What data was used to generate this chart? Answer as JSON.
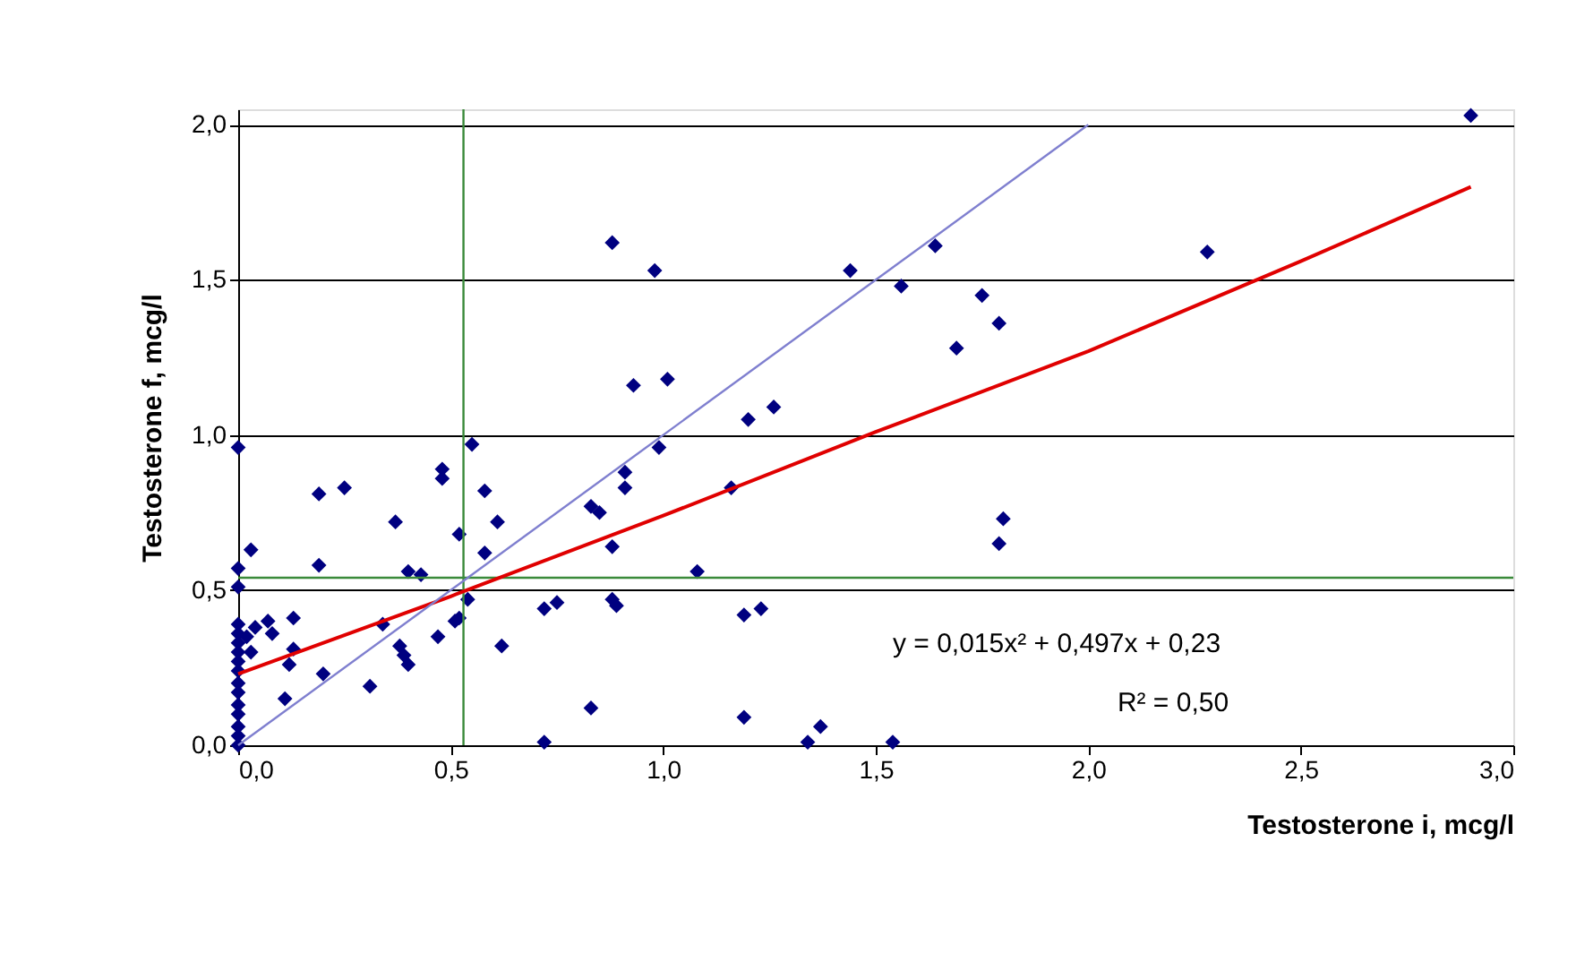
{
  "chart_data": {
    "type": "scatter",
    "xlabel": "Testosterone i, mcg/l",
    "ylabel": "Testosterone f, mcg/l",
    "xlim": [
      0,
      3.0
    ],
    "ylim": [
      0,
      2.05
    ],
    "xticks": [
      {
        "value": 0,
        "label": "0,0"
      },
      {
        "value": 0.5,
        "label": "0,5"
      },
      {
        "value": 1,
        "label": "1,0"
      },
      {
        "value": 1.5,
        "label": "1,5"
      },
      {
        "value": 2,
        "label": "2,0"
      },
      {
        "value": 2.5,
        "label": "2,5"
      },
      {
        "value": 3,
        "label": "3,0"
      }
    ],
    "yticks": [
      {
        "value": 0,
        "label": "0,0"
      },
      {
        "value": 0.5,
        "label": "0,5"
      },
      {
        "value": 1,
        "label": "1,0"
      },
      {
        "value": 1.5,
        "label": "1,5"
      },
      {
        "value": 2,
        "label": "2,0"
      }
    ],
    "grid": "y",
    "series": [
      {
        "marker": "diamond",
        "color": "#000080",
        "x": [
          0,
          0.03,
          0,
          0,
          0.19,
          0.25,
          0.19,
          0.37,
          0.4,
          0.43,
          0.48,
          0.48,
          0.52,
          0.58,
          0.61,
          0.58,
          0.55,
          0.07,
          0.13,
          0.08,
          0.13,
          0.12,
          0.2,
          0.11,
          0.31,
          0.34,
          0.38,
          0.39,
          0.4,
          0.47,
          0.51,
          0.52,
          0.54,
          0.62,
          0.72,
          0.75,
          0.72,
          0,
          0,
          0,
          0,
          0,
          0,
          0,
          0,
          0,
          0,
          0,
          0,
          0,
          0.02,
          0.03,
          0.04,
          1.2,
          1.26,
          0.99,
          0.91,
          0.91,
          0.83,
          0.85,
          0.88,
          1.16,
          1.08,
          0.88,
          0.89,
          1.19,
          1.23,
          0.83,
          1.19,
          1.37,
          1.34,
          1.54,
          0.88,
          0.98,
          1.44,
          1.56,
          0.93,
          1.01,
          1.64,
          1.75,
          1.79,
          1.69,
          2.28,
          1.8,
          1.79,
          2.9
        ],
        "values": [
          0.96,
          0.63,
          0.57,
          0.51,
          0.81,
          0.83,
          0.58,
          0.72,
          0.56,
          0.55,
          0.89,
          0.86,
          0.68,
          0.82,
          0.72,
          0.62,
          0.97,
          0.4,
          0.41,
          0.36,
          0.31,
          0.26,
          0.23,
          0.15,
          0.19,
          0.39,
          0.32,
          0.29,
          0.26,
          0.35,
          0.4,
          0.41,
          0.47,
          0.32,
          0.44,
          0.46,
          0.01,
          0,
          0.03,
          0.06,
          0.1,
          0.13,
          0.17,
          0.2,
          0.24,
          0.27,
          0.3,
          0.33,
          0.36,
          0.39,
          0.35,
          0.3,
          0.38,
          1.05,
          1.09,
          0.96,
          0.88,
          0.83,
          0.77,
          0.75,
          0.64,
          0.83,
          0.56,
          0.47,
          0.45,
          0.42,
          0.44,
          0.12,
          0.09,
          0.06,
          0.01,
          0.01,
          1.62,
          1.53,
          1.53,
          1.48,
          1.16,
          1.18,
          1.61,
          1.45,
          1.36,
          1.28,
          1.59,
          0.73,
          0.65,
          2.03
        ]
      },
      {
        "type": "line",
        "marker": "none",
        "color": "#e00000",
        "x": [
          0,
          0.5,
          1.0,
          1.5,
          2.0,
          2.5,
          2.9
        ],
        "values": [
          0.23,
          0.48,
          0.74,
          1.01,
          1.27,
          1.56,
          1.8
        ]
      },
      {
        "type": "line",
        "marker": "none",
        "color": "#7f7fcf",
        "x": [
          0,
          2.0
        ],
        "values": [
          0,
          2.0
        ]
      }
    ],
    "ref_lines": [
      {
        "axis": "x",
        "value": 0.53,
        "color": "#3a8a3a"
      },
      {
        "axis": "y",
        "value": 0.54,
        "color": "#3a8a3a"
      }
    ],
    "annotations": [
      "y = 0,015x² + 0,497x + 0,23",
      "R² = 0,50"
    ]
  }
}
